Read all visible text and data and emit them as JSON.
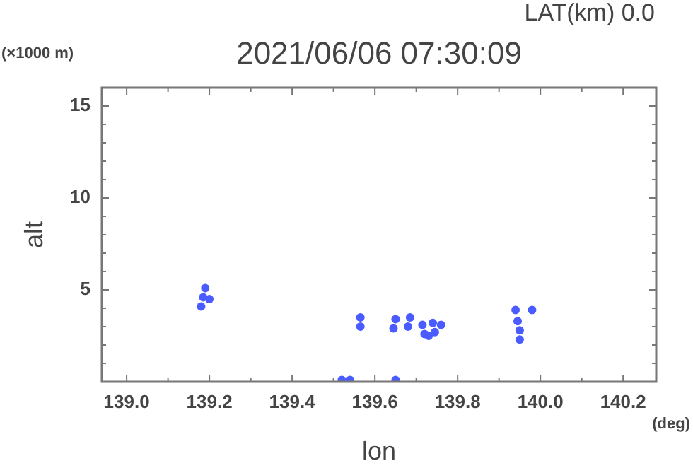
{
  "chart_data": {
    "type": "scatter",
    "title": "2021/06/06 07:30:09",
    "subtitle": "LAT(km) 0.0",
    "xlabel": "lon",
    "ylabel": "alt",
    "annotations": [
      "(×1000 m)",
      "(deg)"
    ],
    "xlim": [
      138.94,
      140.28
    ],
    "xticks": [
      {
        "value": 139.0,
        "label": "139.0"
      },
      {
        "value": 139.1,
        "label": null
      },
      {
        "value": 139.2,
        "label": "139.2"
      },
      {
        "value": 139.3,
        "label": null
      },
      {
        "value": 139.4,
        "label": "139.4"
      },
      {
        "value": 139.5,
        "label": null
      },
      {
        "value": 139.6,
        "label": "139.6"
      },
      {
        "value": 139.7,
        "label": null
      },
      {
        "value": 139.8,
        "label": "139.8"
      },
      {
        "value": 139.9,
        "label": null
      },
      {
        "value": 140.0,
        "label": "140.0"
      },
      {
        "value": 140.1,
        "label": null
      },
      {
        "value": 140.2,
        "label": "140.2"
      }
    ],
    "ylim": [
      0,
      16
    ],
    "yticks": [
      {
        "value": 1,
        "label": null
      },
      {
        "value": 2,
        "label": null
      },
      {
        "value": 3,
        "label": null
      },
      {
        "value": 4,
        "label": null
      },
      5,
      {
        "value": 6,
        "label": null
      },
      {
        "value": 7,
        "label": null
      },
      {
        "value": 8,
        "label": null
      },
      {
        "value": 9,
        "label": null
      },
      10,
      {
        "value": 11,
        "label": null
      },
      {
        "value": 12,
        "label": null
      },
      {
        "value": 13,
        "label": null
      },
      {
        "value": 14,
        "label": null
      },
      15
    ],
    "grid": false,
    "legend": false,
    "marker": "circle",
    "series": [
      {
        "color": "#4a5cff",
        "x": [
          139.18,
          139.185,
          139.19,
          139.2,
          139.565,
          139.565,
          139.645,
          139.65,
          139.68,
          139.685,
          139.715,
          139.73,
          139.745,
          139.76,
          139.72,
          139.74,
          139.94,
          139.945,
          139.95,
          139.95,
          139.98,
          139.52,
          139.54,
          139.65
        ],
        "values": [
          4.1,
          4.6,
          5.1,
          4.5,
          3.0,
          3.5,
          2.9,
          3.4,
          3.0,
          3.5,
          3.1,
          2.5,
          2.7,
          3.1,
          2.6,
          3.2,
          3.9,
          3.3,
          2.8,
          2.3,
          3.9,
          0.1,
          0.1,
          0.1
        ]
      }
    ]
  }
}
